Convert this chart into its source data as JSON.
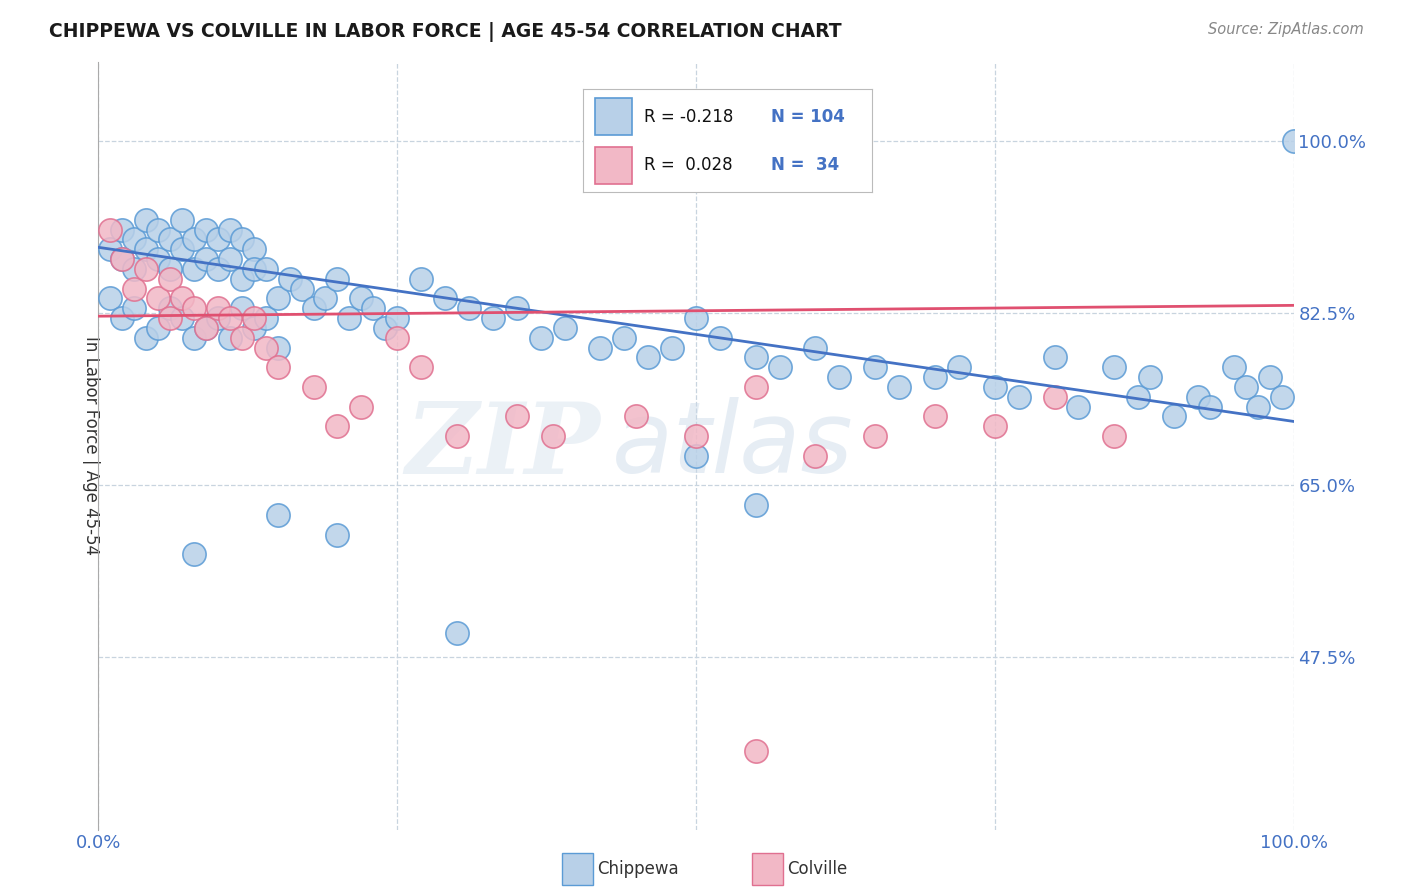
{
  "title": "CHIPPEWA VS COLVILLE IN LABOR FORCE | AGE 45-54 CORRELATION CHART",
  "source_text": "Source: ZipAtlas.com",
  "ylabel": "In Labor Force | Age 45-54",
  "watermark_zip": "ZIP",
  "watermark_atlas": "atlas",
  "legend_blue_r": "R = -0.218",
  "legend_blue_n": "N = 104",
  "legend_pink_r": "R =  0.028",
  "legend_pink_n": "N =  34",
  "legend_blue_label": "Chippewa",
  "legend_pink_label": "Colville",
  "xlim": [
    0.0,
    1.0
  ],
  "ylim": [
    0.3,
    1.08
  ],
  "yticks": [
    0.475,
    0.65,
    0.825,
    1.0
  ],
  "ytick_labels": [
    "47.5%",
    "65.0%",
    "82.5%",
    "100.0%"
  ],
  "xticks": [
    0.0,
    1.0
  ],
  "xtick_labels": [
    "0.0%",
    "100.0%"
  ],
  "blue_face": "#b8d0e8",
  "blue_edge": "#5b9bd5",
  "pink_face": "#f2b8c6",
  "pink_edge": "#e07090",
  "trend_blue": "#4472c4",
  "trend_pink": "#e05070",
  "axis_tick_color": "#4472c4",
  "grid_color": "#c8d4df",
  "title_color": "#1a1a1a",
  "trend_blue_x0": 0.0,
  "trend_blue_y0": 0.892,
  "trend_blue_x1": 1.0,
  "trend_blue_y1": 0.715,
  "trend_pink_x0": 0.0,
  "trend_pink_y0": 0.822,
  "trend_pink_x1": 1.0,
  "trend_pink_y1": 0.833
}
